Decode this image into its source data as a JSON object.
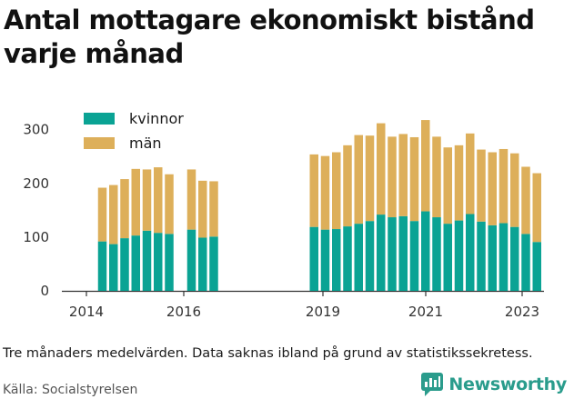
{
  "chart_data": {
    "type": "bar",
    "stacked": true,
    "title": "Antal mottagare ekonomiskt bistånd varje månad",
    "ylim": [
      0,
      330
    ],
    "yticks": [
      0,
      100,
      200,
      300
    ],
    "xticks": [
      "2014",
      "2016",
      "2019",
      "2021",
      "2023"
    ],
    "legend_position": "top-left",
    "grid": false,
    "series": [
      {
        "name": "kvinnor",
        "color": "#0aa394",
        "values": [
          92,
          87,
          98,
          103,
          112,
          108,
          106,
          null,
          114,
          99,
          101,
          null,
          null,
          null,
          null,
          null,
          null,
          null,
          null,
          119,
          114,
          115,
          120,
          125,
          130,
          142,
          137,
          139,
          130,
          148,
          137,
          125,
          131,
          143,
          129,
          122,
          126,
          119,
          106,
          91
        ]
      },
      {
        "name": "män",
        "color": "#ddaf5a",
        "values": [
          100,
          110,
          110,
          124,
          114,
          122,
          111,
          null,
          112,
          106,
          103,
          null,
          null,
          null,
          null,
          null,
          null,
          null,
          null,
          135,
          137,
          143,
          151,
          165,
          159,
          170,
          150,
          153,
          156,
          170,
          150,
          142,
          140,
          150,
          134,
          136,
          138,
          137,
          125,
          128
        ]
      }
    ],
    "categories": [
      "2014 Q2",
      "2014 Q3",
      "2014 Q4",
      "2015 Q1",
      "2015 Q2",
      "2015 Q3",
      "2015 Q4",
      "2016 Q1",
      "2016 Q2",
      "2016 Q3",
      "2016 Q4",
      "2017 Q1",
      "2017 Q2",
      "2017 Q3",
      "2017 Q4",
      "2018 Q1",
      "2018 Q2",
      "2018 Q3",
      "2018 Q4",
      "2019 Q1",
      "2019 Q2",
      "2019 Q3",
      "2019 Q4",
      "2020 Q1",
      "2020 Q2",
      "2020 Q3",
      "2020 Q4",
      "2021 Q1",
      "2021 Q2",
      "2021 Q3",
      "2021 Q4",
      "2022 Q1",
      "2022 Q2",
      "2022 Q3",
      "2022 Q4",
      "2023 Q1",
      "2023 Q2",
      "2023 Q3",
      "2023 Q4",
      "2024 Q1"
    ]
  },
  "note": "Tre månaders medelvärden. Data saknas ibland på grund av statistikssekretess.",
  "source": "Källa: Socialstyrelsen",
  "brand": {
    "name": "Newsworthy",
    "color": "#2a9c8c"
  }
}
